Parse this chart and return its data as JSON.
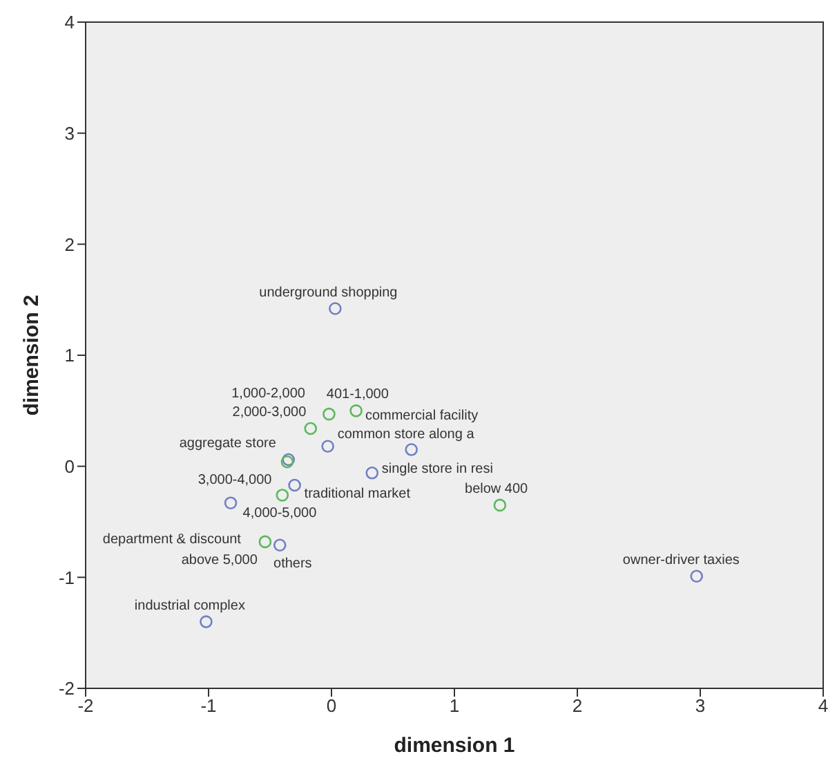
{
  "chart_data": {
    "type": "scatter",
    "xlabel": "dimension 1",
    "ylabel": "dimension 2",
    "xlim": [
      -2,
      4
    ],
    "ylim": [
      -2,
      4
    ],
    "xticks": [
      -2,
      -1,
      0,
      1,
      2,
      3,
      4
    ],
    "yticks": [
      -2,
      -1,
      0,
      1,
      2,
      3,
      4
    ],
    "grid": false,
    "legend": false,
    "marker": "circle",
    "series": [
      {
        "color": "#7080c4",
        "x": [
          0.03,
          0.65,
          0.33,
          -0.03,
          -0.35,
          -0.3,
          -0.82,
          -0.42,
          -1.02,
          2.97
        ],
        "values": [
          1.42,
          0.15,
          -0.06,
          0.18,
          0.06,
          -0.17,
          -0.33,
          -0.71,
          -1.4,
          -0.99
        ]
      },
      {
        "color": "#5cb85c",
        "x": [
          0.2,
          -0.02,
          -0.17,
          -0.36,
          -0.4,
          -0.54,
          1.37
        ],
        "values": [
          0.5,
          0.47,
          0.34,
          0.04,
          -0.26,
          -0.68,
          -0.35
        ]
      }
    ],
    "annotations": [
      {
        "text": "underground shopping",
        "x": 0.03,
        "y": 1.42
      },
      {
        "text": "commercial facility",
        "x": 0.65,
        "y": 0.15
      },
      {
        "text": "single store in resi",
        "x": 0.33,
        "y": -0.06
      },
      {
        "text": "common store along a",
        "x": -0.03,
        "y": 0.18
      },
      {
        "text": "aggregate store",
        "x": -0.35,
        "y": 0.06
      },
      {
        "text": "traditional market",
        "x": -0.3,
        "y": -0.17
      },
      {
        "text": "department & discount",
        "x": -0.82,
        "y": -0.33
      },
      {
        "text": "others",
        "x": -0.42,
        "y": -0.71
      },
      {
        "text": "industrial complex",
        "x": -1.02,
        "y": -1.4
      },
      {
        "text": "owner-driver taxies",
        "x": 2.97,
        "y": -0.99
      },
      {
        "text": "401-1,000",
        "x": 0.2,
        "y": 0.5
      },
      {
        "text": "1,000-2,000",
        "x": -0.02,
        "y": 0.47
      },
      {
        "text": "2,000-3,000",
        "x": -0.17,
        "y": 0.34
      },
      {
        "text": "3,000-4,000",
        "x": -0.36,
        "y": 0.04
      },
      {
        "text": "4,000-5,000",
        "x": -0.4,
        "y": -0.26
      },
      {
        "text": "above 5,000",
        "x": -0.54,
        "y": -0.68
      },
      {
        "text": "below 400",
        "x": 1.37,
        "y": -0.35
      }
    ]
  }
}
